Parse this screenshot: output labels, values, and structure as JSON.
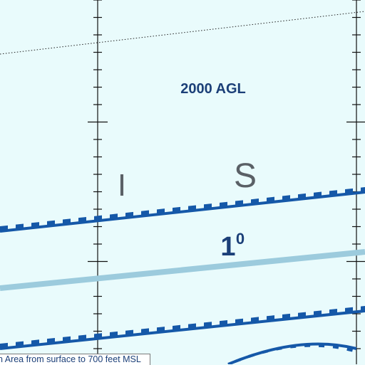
{
  "colors": {
    "background": "#e9fbfc",
    "airspace_blue": "#1558a8",
    "airway_light_blue": "#9ccbdd",
    "gridline": "#111111",
    "place_letters": "#5a6066",
    "label_text": "#1b3f78"
  },
  "labels": {
    "altitude": "2000 AGL",
    "letter_left": "I",
    "letter_right": "S",
    "degree_major": "1",
    "degree_minor": "0",
    "area_note": "n Area from surface to 700 feet MSL"
  }
}
